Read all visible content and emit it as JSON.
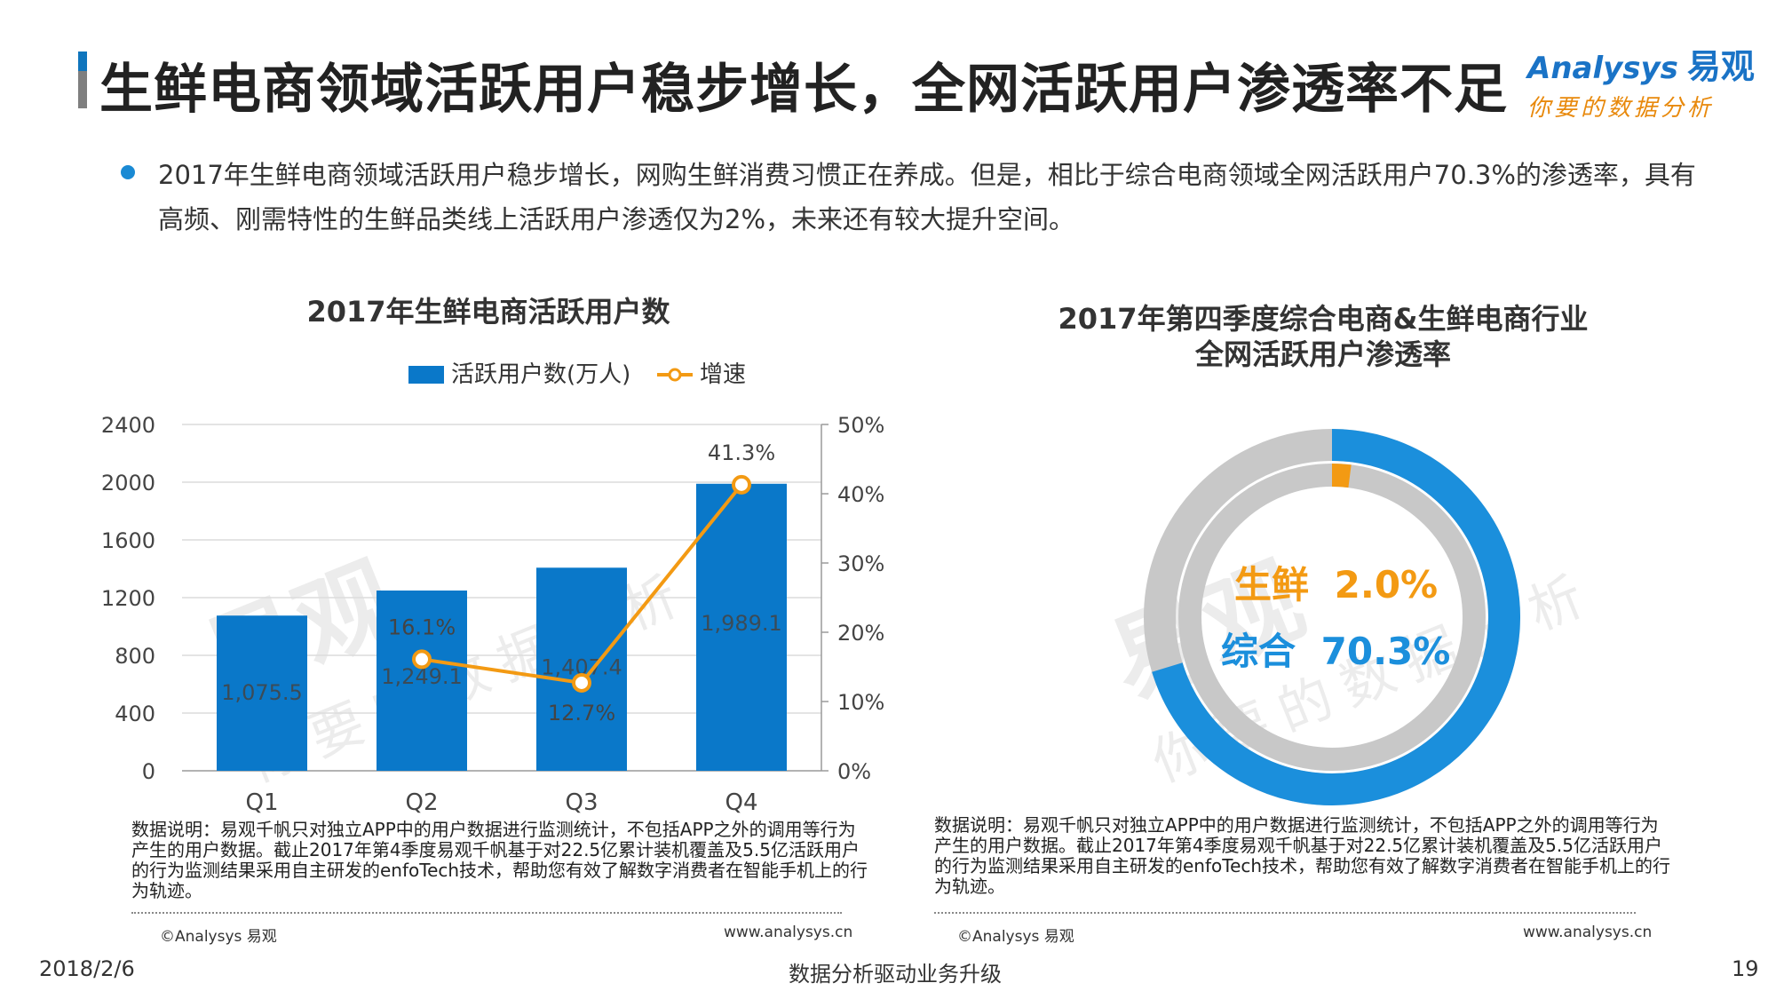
{
  "header": {
    "title": "生鲜电商领域活跃用户稳步增长，全网活跃用户渗透率不足",
    "logo_brand": "Analysys",
    "logo_brand_cn": "易观",
    "logo_slogan": "你要的数据分析"
  },
  "bullet": {
    "text": "2017年生鲜电商领域活跃用户稳步增长，网购生鲜消费习惯正在养成。但是，相比于综合电商领域全网活跃用户70.3%的渗透率，具有高频、刚需特性的生鲜品类线上活跃用户渗透仅为2%，未来还有较大提升空间。"
  },
  "left_panel": {
    "note": "数据说明：易观千帆只对独立APP中的用户数据进行监测统计，不包括APP之外的调用等行为产生的用户数据。截止2017年第4季度易观千帆基于对22.5亿累计装机覆盖及5.5亿活跃用户的行为监测结果采用自主研发的enfoTech技术，帮助您有效了解数字消费者在智能手机上的行为轨迹。",
    "copyright": "©Analysys 易观",
    "website": "www.analysys.cn"
  },
  "right_panel": {
    "note": "数据说明：易观千帆只对独立APP中的用户数据进行监测统计，不包括APP之外的调用等行为产生的用户数据。截止2017年第4季度易观千帆基于对22.5亿累计装机覆盖及5.5亿活跃用户的行为监测结果采用自主研发的enfoTech技术，帮助您有效了解数字消费者在智能手机上的行为轨迹。",
    "copyright": "©Analysys 易观",
    "website": "www.analysys.cn"
  },
  "footer": {
    "date": "2018/2/6",
    "slogan": "数据分析驱动业务升级",
    "page": "19"
  },
  "watermark": {
    "brand": "易观",
    "slogan": "你要的数据分析"
  },
  "colors": {
    "bar": "#0a78c9",
    "line": "#f39a13",
    "donut_outer": "#1b8fdc",
    "donut_rest": "#c8c8c8",
    "fresh": "#f39a13",
    "general": "#1b8fdc"
  },
  "chart_data": [
    {
      "type": "bar",
      "title": "2017年生鲜电商活跃用户数",
      "categories": [
        "Q1",
        "Q2",
        "Q3",
        "Q4"
      ],
      "series": [
        {
          "name": "活跃用户数(万人)",
          "kind": "bar",
          "axis": "left",
          "values": [
            1075.5,
            1249.1,
            1407.4,
            1989.1
          ],
          "labels": [
            "1,075.5",
            "1,249.1",
            "1,407.4",
            "1,989.1"
          ]
        },
        {
          "name": "增速",
          "kind": "line",
          "axis": "right",
          "values": [
            null,
            16.1,
            12.7,
            41.3
          ],
          "labels": [
            "",
            "16.1%",
            "12.7%",
            "41.3%"
          ]
        }
      ],
      "y_left": {
        "min": 0,
        "max": 2400,
        "ticks": [
          "0",
          "400",
          "800",
          "1200",
          "1600",
          "2000",
          "2400"
        ]
      },
      "y_right": {
        "min": 0,
        "max": 50,
        "ticks": [
          "0%",
          "10%",
          "20%",
          "30%",
          "40%",
          "50%"
        ]
      },
      "legend_position": "top",
      "grid": true
    },
    {
      "type": "pie",
      "title": "2017年第四季度综合电商&生鲜电商行业",
      "subtitle": "全网活跃用户渗透率",
      "rings": [
        {
          "name": "综合",
          "value": 70.3,
          "label": "综合",
          "value_label": "70.3%"
        },
        {
          "name": "生鲜",
          "value": 2.0,
          "label": "生鲜",
          "value_label": "2.0%"
        }
      ]
    }
  ]
}
